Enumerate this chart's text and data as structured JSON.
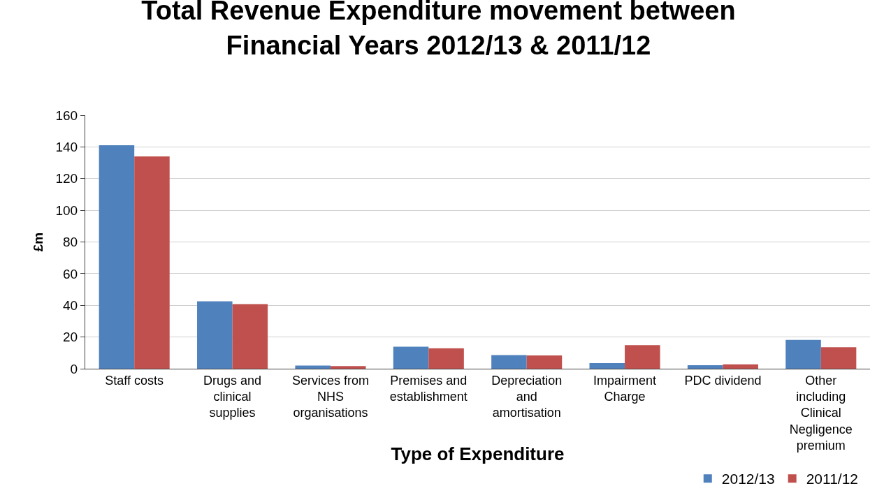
{
  "chart_data": {
    "type": "bar",
    "title": "Total Revenue Expenditure movement between Financial Years 2012/13 & 2011/12",
    "xlabel": "Type of Expenditure",
    "ylabel": "£m",
    "categories": [
      "Staff costs",
      "Drugs and clinical supplies",
      "Services from NHS organisations",
      "Premises and establishment",
      "Depreciation and amortisation",
      "Impairment Charge",
      "PDC dividend",
      "Other including Clinical Negligence premium"
    ],
    "series": [
      {
        "name": "2012/13",
        "color": "#4f81bd",
        "values": [
          141,
          42.5,
          2,
          13.9,
          8.6,
          3.5,
          2.2,
          18.2
        ]
      },
      {
        "name": "2011/12",
        "color": "#c0504d",
        "values": [
          134,
          40.8,
          1.7,
          12.9,
          8.4,
          14.9,
          2.7,
          13.5
        ]
      }
    ],
    "ylim": [
      0,
      160
    ],
    "yticks": [
      0,
      20,
      40,
      60,
      80,
      100,
      120,
      140,
      160
    ],
    "grid": "y",
    "legend": "bottom right"
  }
}
